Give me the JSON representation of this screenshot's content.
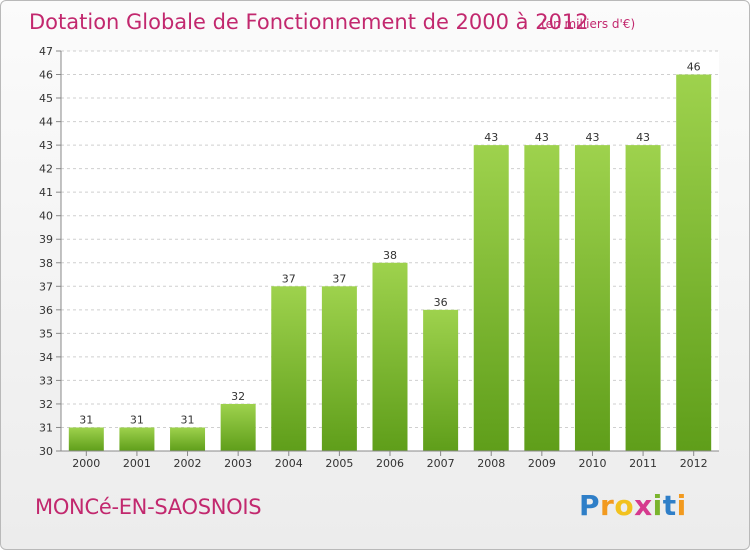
{
  "chart_data": {
    "type": "bar",
    "title": "Dotation Globale de Fonctionnement de 2000 à 2012",
    "subtitle": "(en milliers d'€)",
    "categories": [
      "2000",
      "2001",
      "2002",
      "2003",
      "2004",
      "2005",
      "2006",
      "2007",
      "2008",
      "2009",
      "2010",
      "2011",
      "2012"
    ],
    "values": [
      31,
      31,
      31,
      32,
      37,
      37,
      38,
      36,
      43,
      43,
      43,
      43,
      46
    ],
    "data_labels": [
      "31",
      "31",
      "31",
      "32",
      "37",
      "37",
      "38",
      "36",
      "43",
      "43",
      "43",
      "43",
      "46"
    ],
    "ylim": [
      30,
      47
    ],
    "yticks": [
      "30",
      "31",
      "32",
      "33",
      "34",
      "35",
      "36",
      "37",
      "38",
      "39",
      "40",
      "41",
      "42",
      "43",
      "44",
      "45",
      "46",
      "47"
    ],
    "grid": "horizontal dashed",
    "bar_color_top": "#9ed24d",
    "bar_color_bottom": "#5f9e1a"
  },
  "place_name": "MONCé-EN-SAOSNOIS",
  "logo": {
    "letters": [
      "P",
      "r",
      "o",
      "x",
      "i",
      "t",
      "i"
    ],
    "colors": [
      "#2f7fc8",
      "#f29a1f",
      "#f2c21f",
      "#d63a8e",
      "#7ab42d",
      "#2f7fc8",
      "#f29a1f"
    ]
  },
  "colors": {
    "title": "#c2286e",
    "place": "#c2286e"
  }
}
